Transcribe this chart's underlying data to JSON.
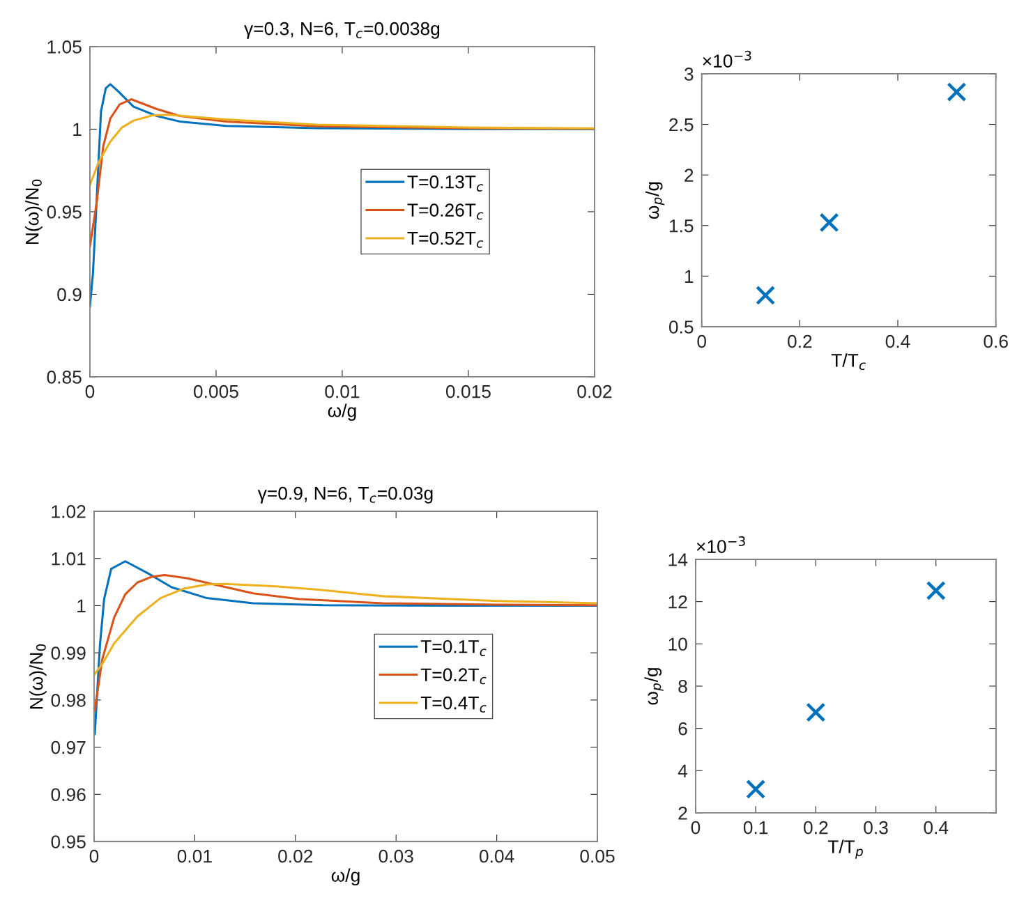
{
  "chart_data": [
    {
      "type": "line",
      "title": "γ=0.3, N=6, T$_{c}$=0.0038g",
      "xlabel": "ω/g",
      "ylabel": "N(ω)/N$_{0}$",
      "xlim": [
        0,
        0.02
      ],
      "xticks": [
        0,
        0.005,
        0.01,
        0.015,
        0.02
      ],
      "ylim": [
        0.85,
        1.05
      ],
      "yticks": [
        0.85,
        0.9,
        0.95,
        1,
        1.05
      ],
      "legend": "center right",
      "series": [
        {
          "name": "T=0.13T$_{c}$",
          "color": "#0072bd",
          "x": [
            0,
            0.00012,
            0.00026,
            0.00044,
            0.00063,
            0.00081,
            0.00115,
            0.00173,
            0.00265,
            0.00357,
            0.0054,
            0.009,
            0.015,
            0.02
          ],
          "values": [
            0.8926,
            0.9124,
            0.9545,
            1.0108,
            1.0248,
            1.0272,
            1.0225,
            1.0136,
            1.008,
            1.0046,
            1.002,
            1.0006,
            1.0001,
            1.0
          ]
        },
        {
          "name": "T=0.26T$_{c}$",
          "color": "#d95319",
          "x": [
            0,
            0.00026,
            0.00053,
            0.00081,
            0.00118,
            0.00164,
            0.00265,
            0.00357,
            0.0054,
            0.009,
            0.015,
            0.02
          ],
          "values": [
            0.929,
            0.9546,
            0.9897,
            1.0065,
            1.015,
            1.0181,
            1.0122,
            1.008,
            1.0046,
            1.0018,
            1.0006,
            1.0003
          ]
        },
        {
          "name": "T=0.52T$_{c}$",
          "color": "#edb120",
          "x": [
            0,
            0.00035,
            0.00081,
            0.00127,
            0.00173,
            0.00247,
            0.00311,
            0.0054,
            0.009,
            0.015,
            0.02
          ],
          "values": [
            0.9662,
            0.9801,
            0.9925,
            1.001,
            1.0052,
            1.0083,
            1.0087,
            1.0059,
            1.0027,
            1.001,
            1.0005
          ]
        }
      ]
    },
    {
      "type": "scatter",
      "xlabel": "T/T$_{c}$",
      "ylabel": "ω$_{p}$/g",
      "xlim": [
        0,
        0.6
      ],
      "xticks": [
        0,
        0.2,
        0.4,
        0.6
      ],
      "ylim": [
        0.5,
        3
      ],
      "yticks": [
        0.5,
        1,
        1.5,
        2,
        2.5,
        3
      ],
      "marker": "cross",
      "annotations": [
        "×10$^{−3}$"
      ],
      "series": [
        {
          "color": "#0072bd",
          "x": [
            0.13,
            0.26,
            0.52
          ],
          "values": [
            0.81,
            1.53,
            2.82
          ]
        }
      ]
    },
    {
      "type": "line",
      "title": "γ=0.9, N=6, T$_{c}$=0.03g",
      "xlabel": "ω/g",
      "ylabel": "N(ω)/N$_{0}$",
      "xlim": [
        0,
        0.05
      ],
      "xticks": [
        0,
        0.01,
        0.02,
        0.03,
        0.04,
        0.05
      ],
      "ylim": [
        0.95,
        1.02
      ],
      "yticks": [
        0.95,
        0.96,
        0.97,
        0.98,
        0.99,
        1,
        1.01,
        1.02
      ],
      "legend": "center right",
      "series": [
        {
          "name": "T=0.1T$_{c}$",
          "color": "#0072bd",
          "x": [
            7e-05,
            0.00058,
            0.001,
            0.0017,
            0.0031,
            0.0054,
            0.0077,
            0.0112,
            0.0158,
            0.0227,
            0.035,
            0.05
          ],
          "values": [
            0.9728,
            0.9915,
            1.0014,
            1.0078,
            1.0094,
            1.0068,
            1.0039,
            1.0016,
            1.0005,
            1.0001,
            1.0,
            1.0
          ]
        },
        {
          "name": "T=0.2T$_{c}$",
          "color": "#d95319",
          "x": [
            7e-05,
            0.00081,
            0.002,
            0.0031,
            0.0043,
            0.0057,
            0.007,
            0.0093,
            0.0123,
            0.0158,
            0.0204,
            0.0287,
            0.04,
            0.05
          ],
          "values": [
            0.9778,
            0.9886,
            0.9975,
            1.0024,
            1.0049,
            1.0061,
            1.0065,
            1.0058,
            1.0043,
            1.0026,
            1.0014,
            1.0005,
            1.0002,
            1.0001
          ]
        },
        {
          "name": "T=0.4T$_{c}$",
          "color": "#edb120",
          "x": [
            7e-05,
            0.0008,
            0.002,
            0.0043,
            0.0066,
            0.0089,
            0.0112,
            0.013,
            0.0181,
            0.0227,
            0.0287,
            0.04,
            0.05
          ],
          "values": [
            0.9855,
            0.9876,
            0.992,
            0.9977,
            1.0016,
            1.0036,
            1.0045,
            1.0046,
            1.0041,
            1.0033,
            1.002,
            1.001,
            1.0005
          ]
        }
      ]
    },
    {
      "type": "scatter",
      "xlabel": "T/T$_{p}$",
      "ylabel": "ω$_{p}$/g",
      "xlim": [
        0,
        0.5
      ],
      "xticks": [
        0,
        0.1,
        0.2,
        0.3,
        0.4
      ],
      "ylim": [
        2,
        14
      ],
      "yticks": [
        2,
        4,
        6,
        8,
        10,
        12,
        14
      ],
      "marker": "cross",
      "annotations": [
        "×10$^{−3}$"
      ],
      "series": [
        {
          "color": "#0072bd",
          "x": [
            0.1,
            0.2,
            0.4
          ],
          "values": [
            3.12,
            6.76,
            12.52
          ]
        }
      ]
    }
  ]
}
